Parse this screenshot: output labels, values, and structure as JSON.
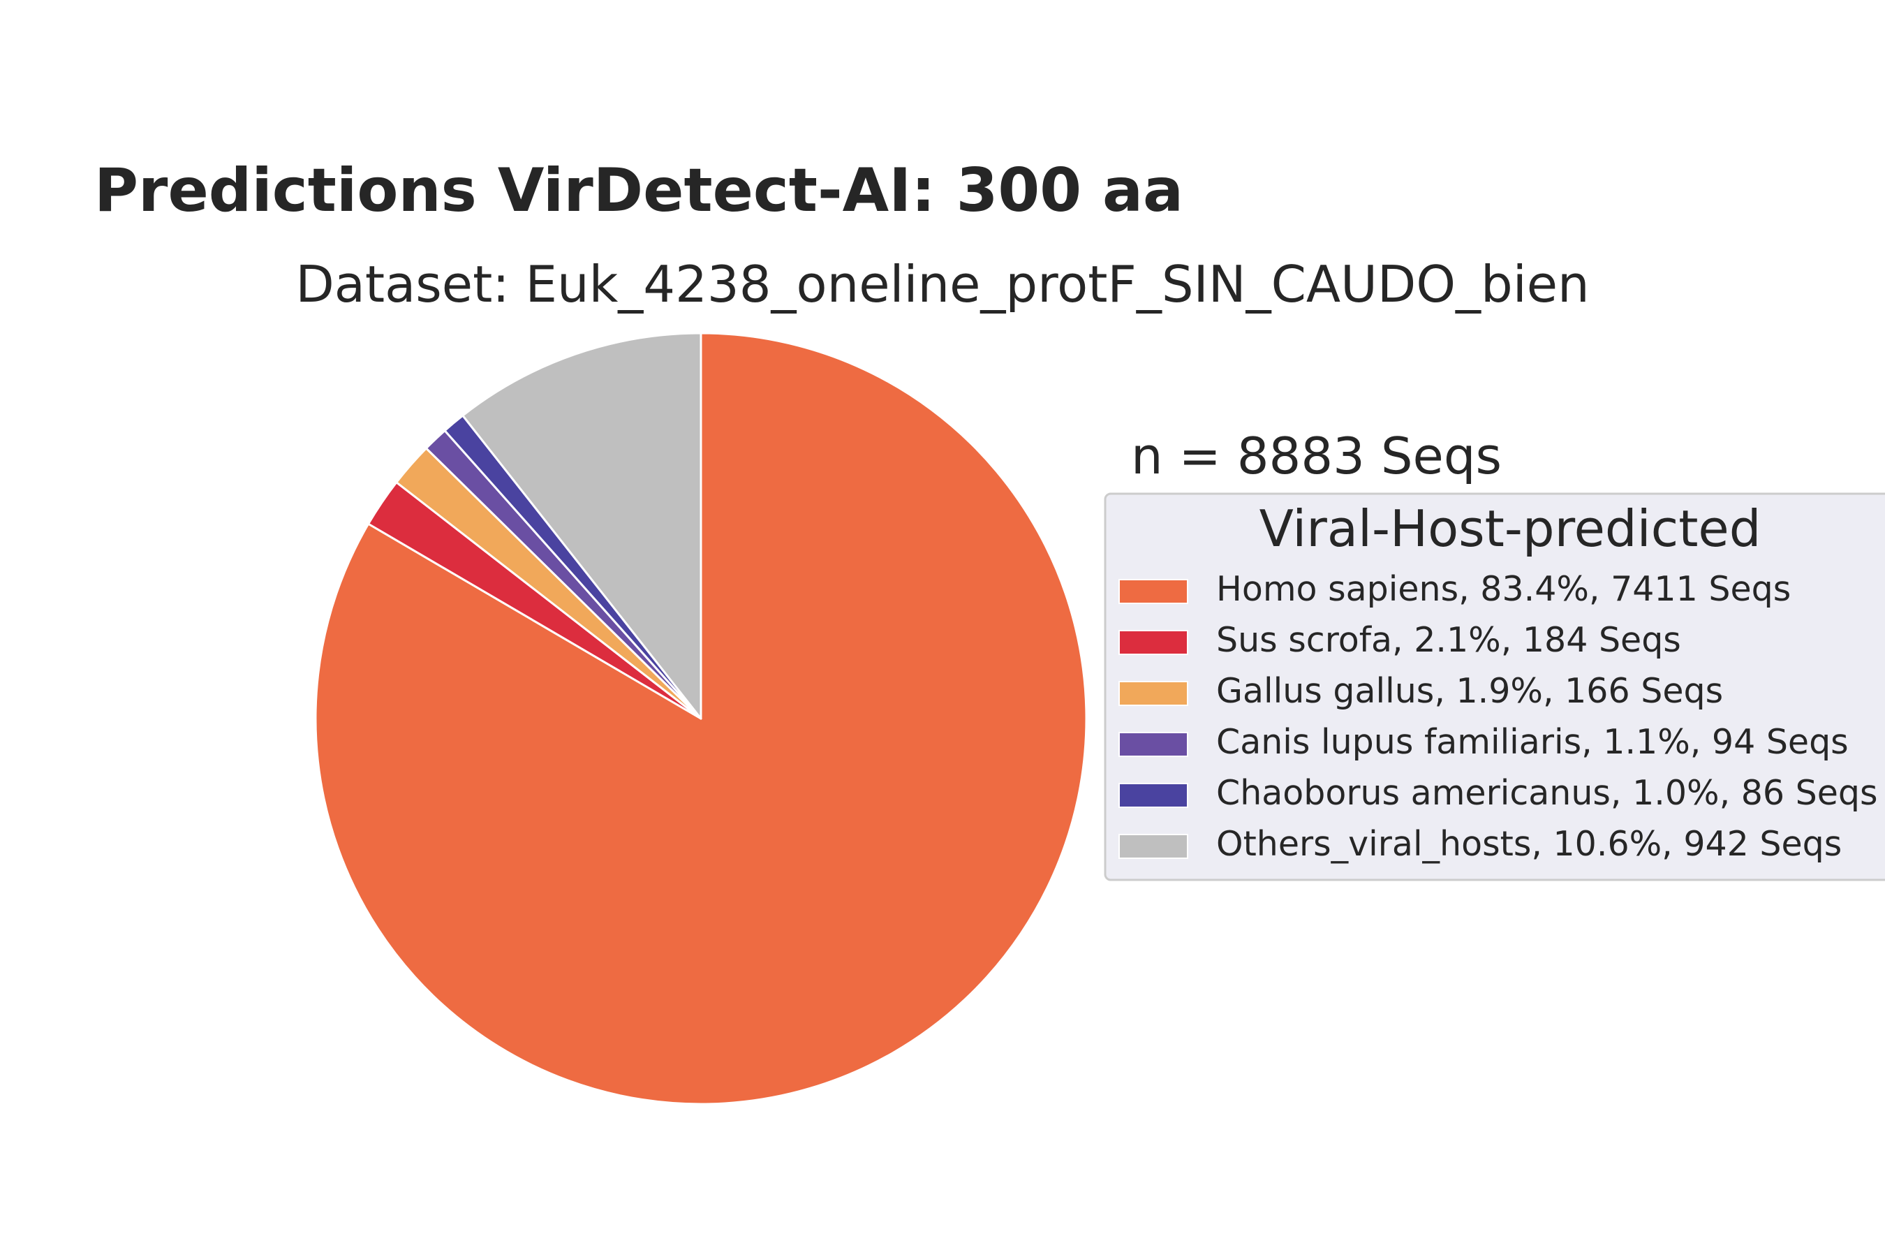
{
  "chart_data": {
    "type": "pie",
    "title": "Predictions VirDetect-AI: 300 aa",
    "subtitle": "Dataset: Euk_4238_oneline_protF_SIN_CAUDO_bien",
    "annotation": "n = 8883 Seqs",
    "legend_title": "Viral-Host-predicted",
    "legend_position": "right",
    "start_angle_deg": 90,
    "direction": "clockwise",
    "slices": [
      {
        "name": "Homo sapiens",
        "label": "Homo sapiens, 83.4%, 7411 Seqs",
        "value": 7411,
        "percent": 83.4,
        "color": "#ee6b42"
      },
      {
        "name": "Sus scrofa",
        "label": "Sus scrofa, 2.1%, 184 Seqs",
        "value": 184,
        "percent": 2.1,
        "color": "#dc2d3e"
      },
      {
        "name": "Gallus gallus",
        "label": "Gallus gallus, 1.9%, 166 Seqs",
        "value": 166,
        "percent": 1.9,
        "color": "#f1a85a"
      },
      {
        "name": "Canis lupus familiaris",
        "label": "Canis lupus familiaris, 1.1%, 94 Seqs",
        "value": 94,
        "percent": 1.1,
        "color": "#6a4fa3"
      },
      {
        "name": "Chaoborus americanus",
        "label": "Chaoborus americanus, 1.0%, 86 Seqs",
        "value": 86,
        "percent": 1.0,
        "color": "#4a43a0"
      },
      {
        "name": "Others_viral_hosts",
        "label": "Others_viral_hosts, 10.6%, 942 Seqs",
        "value": 942,
        "percent": 10.6,
        "color": "#bfbfbf"
      }
    ]
  }
}
